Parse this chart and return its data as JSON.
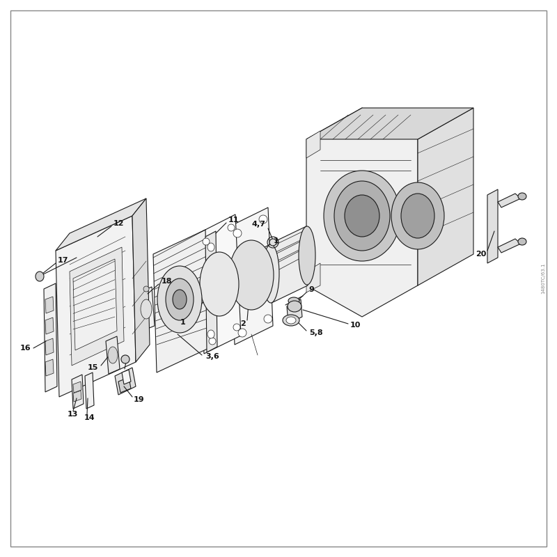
{
  "background_color": "#ffffff",
  "border_color": "#888888",
  "line_color": "#1a1a1a",
  "text_color": "#111111",
  "figsize": [
    8,
    8
  ],
  "dpi": 100,
  "watermark": "1480TC/63.1"
}
